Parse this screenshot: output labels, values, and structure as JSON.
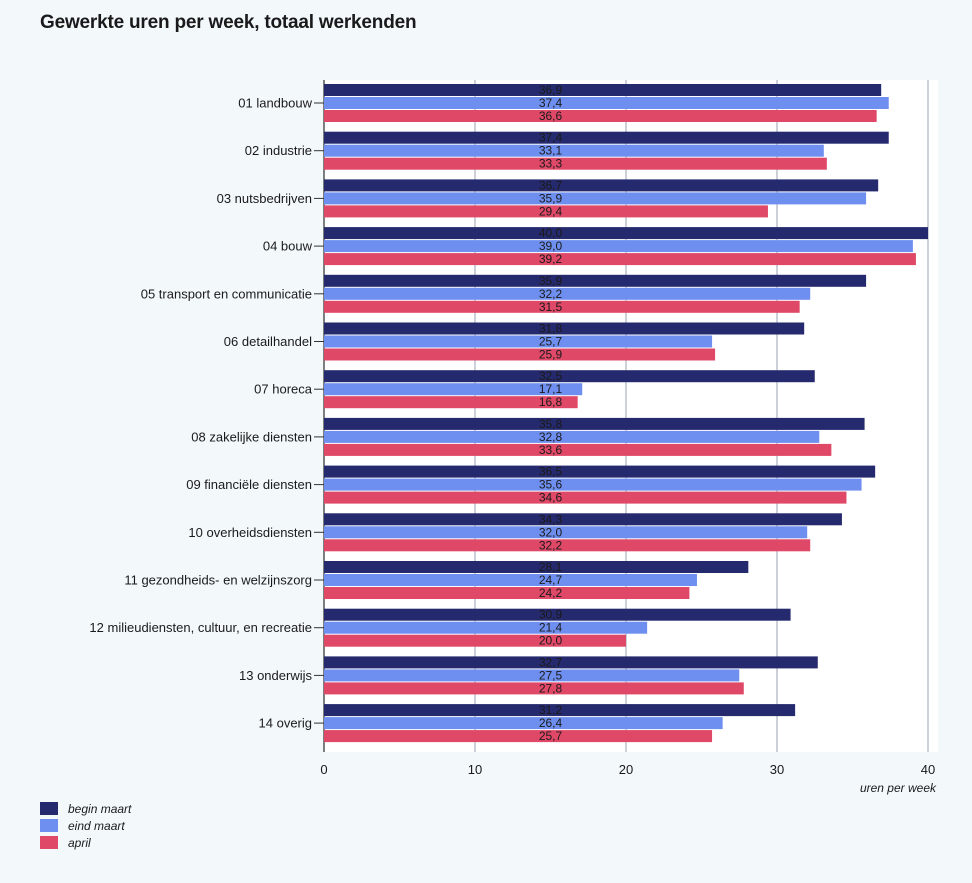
{
  "chart_data": {
    "type": "bar",
    "orientation": "horizontal",
    "title": "Gewerkte uren per week, totaal werkenden",
    "xlabel": "uren per week",
    "ylabel": "",
    "xlim": [
      0,
      40
    ],
    "xticks": [
      0,
      10,
      20,
      30,
      40
    ],
    "grid": true,
    "legend_position": "bottom-left",
    "categories": [
      "01 landbouw",
      "02 industrie",
      "03 nutsbedrijven",
      "04 bouw",
      "05 transport en communicatie",
      "06 detailhandel",
      "07 horeca",
      "08 zakelijke diensten",
      "09 financiële diensten",
      "10 overheidsdiensten",
      "11 gezondheids- en welzijnszorg",
      "12 milieudiensten, cultuur, en recreatie",
      "13 onderwijs",
      "14 overig"
    ],
    "series": [
      {
        "name": "begin maart",
        "color": "#252a6e",
        "values": [
          36.9,
          37.4,
          36.7,
          40.0,
          35.9,
          31.8,
          32.5,
          35.8,
          36.5,
          34.3,
          28.1,
          30.9,
          32.7,
          31.2
        ],
        "labels": [
          "36,9",
          "37,4",
          "36,7",
          "40,0",
          "35,9",
          "31,8",
          "32,5",
          "35,8",
          "36,5",
          "34,3",
          "28,1",
          "30,9",
          "32,7",
          "31,2"
        ]
      },
      {
        "name": "eind maart",
        "color": "#6f8ff0",
        "values": [
          37.4,
          33.1,
          35.9,
          39.0,
          32.2,
          25.7,
          17.1,
          32.8,
          35.6,
          32.0,
          24.7,
          21.4,
          27.5,
          26.4
        ],
        "labels": [
          "37,4",
          "33,1",
          "35,9",
          "39,0",
          "32,2",
          "25,7",
          "17,1",
          "32,8",
          "35,6",
          "32,0",
          "24,7",
          "21,4",
          "27,5",
          "26,4"
        ]
      },
      {
        "name": "april",
        "color": "#e04868",
        "values": [
          36.6,
          33.3,
          29.4,
          39.2,
          31.5,
          25.9,
          16.8,
          33.6,
          34.6,
          32.2,
          24.2,
          20.0,
          27.8,
          25.7
        ],
        "labels": [
          "36,6",
          "33,3",
          "29,4",
          "39,2",
          "31,5",
          "25,9",
          "16,8",
          "33,6",
          "34,6",
          "32,2",
          "24,2",
          "20,0",
          "27,8",
          "25,7"
        ]
      }
    ]
  }
}
